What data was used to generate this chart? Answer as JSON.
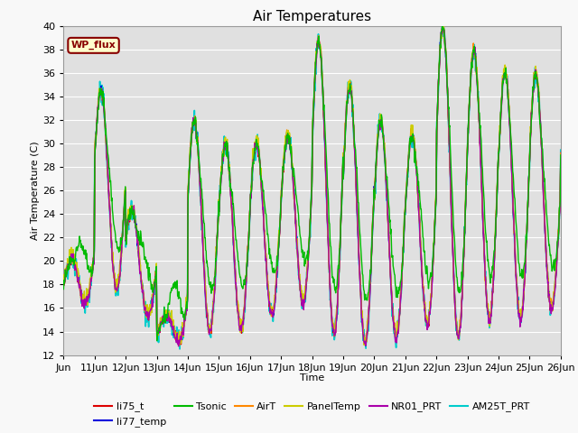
{
  "title": "Air Temperatures",
  "ylabel": "Air Temperature (C)",
  "xlabel": "Time",
  "ylim": [
    12,
    40
  ],
  "yticks": [
    12,
    14,
    16,
    18,
    20,
    22,
    24,
    26,
    28,
    30,
    32,
    34,
    36,
    38,
    40
  ],
  "series": {
    "li75_t": {
      "color": "#dd0000",
      "lw": 1.0,
      "zorder": 3
    },
    "li77_temp": {
      "color": "#0000dd",
      "lw": 1.0,
      "zorder": 3
    },
    "Tsonic": {
      "color": "#00bb00",
      "lw": 1.0,
      "zorder": 4
    },
    "AirT": {
      "color": "#ff8800",
      "lw": 1.0,
      "zorder": 3
    },
    "PanelTemp": {
      "color": "#cccc00",
      "lw": 1.0,
      "zorder": 3
    },
    "NR01_PRT": {
      "color": "#aa00aa",
      "lw": 1.0,
      "zorder": 3
    },
    "AM25T_PRT": {
      "color": "#00cccc",
      "lw": 1.2,
      "zorder": 2
    }
  },
  "legend_box": {
    "text": "WP_flux",
    "facecolor": "#ffffcc",
    "edgecolor": "#880000",
    "textcolor": "#880000",
    "fontsize": 8
  },
  "bg_color": "#e0e0e0",
  "grid_color": "#ffffff",
  "fig_facecolor": "#f8f8f8",
  "title_fontsize": 11,
  "label_fontsize": 8,
  "tick_fontsize": 8,
  "day_peaks": [
    19,
    35,
    25,
    14,
    32,
    30,
    30,
    30,
    39,
    35,
    32,
    30,
    40,
    38,
    36,
    37,
    19
  ],
  "day_mins": [
    16,
    18,
    16,
    13,
    14,
    14,
    15,
    17,
    14,
    13,
    13,
    15,
    13,
    15,
    15,
    15,
    19
  ],
  "tsonic_extra": 4.5
}
